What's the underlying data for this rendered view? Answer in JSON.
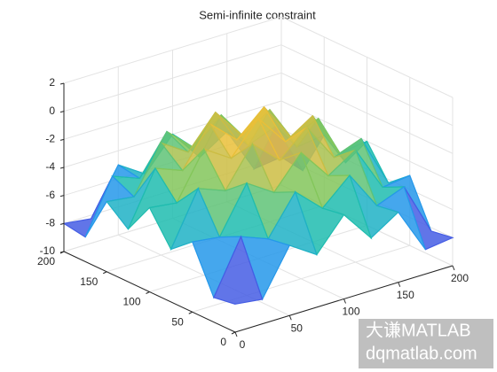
{
  "chart_data": {
    "type": "mesh",
    "title": "Semi-infinite constraint",
    "x": [
      0,
      25,
      50,
      75,
      100,
      125,
      150,
      175,
      200
    ],
    "y": [
      0,
      25,
      50,
      75,
      100,
      125,
      150,
      175,
      200
    ],
    "z": [
      [
        -8,
        -8.25,
        -5,
        -6.25,
        -4,
        -6.25,
        -5,
        -8.25,
        -8
      ],
      [
        -8.25,
        -4.5,
        -5.25,
        -2.5,
        -4.25,
        -2.5,
        -5.25,
        -4.5,
        -8.25
      ],
      [
        -5,
        -5.25,
        -2,
        -3.25,
        -1,
        -3.25,
        -2,
        -5.25,
        -5
      ],
      [
        -6.25,
        -2.5,
        -3.25,
        -0.5,
        -2.25,
        -0.5,
        -3.25,
        -2.5,
        -6.25
      ],
      [
        -4,
        -4.25,
        -1,
        -2.25,
        0,
        -2.25,
        -1,
        -4.25,
        -4
      ],
      [
        -6.25,
        -2.5,
        -3.25,
        -0.5,
        -2.25,
        -0.5,
        -3.25,
        -2.5,
        -6.25
      ],
      [
        -5,
        -5.25,
        -2,
        -3.25,
        -1,
        -3.25,
        -2,
        -5.25,
        -5
      ],
      [
        -8.25,
        -4.5,
        -5.25,
        -2.5,
        -4.25,
        -2.5,
        -5.25,
        -4.5,
        -8.25
      ],
      [
        -8,
        -8.25,
        -5,
        -6.25,
        -4,
        -6.25,
        -5,
        -8.25,
        -8
      ]
    ],
    "xlim": [
      0,
      200
    ],
    "ylim": [
      0,
      200
    ],
    "zlim": [
      -10,
      2
    ],
    "xticks": [
      0,
      50,
      100,
      150,
      200
    ],
    "yticks": [
      0,
      50,
      100,
      150,
      200
    ],
    "zticks": [
      -10,
      -8,
      -6,
      -4,
      -2,
      0,
      2
    ],
    "grid": true,
    "colormap": [
      "#3e26a8",
      "#4772fa",
      "#1ea0e6",
      "#1fbfa9",
      "#83c65a",
      "#e8b93b",
      "#f9fb15"
    ]
  },
  "watermark": [
    "大谦MATLAB",
    "dqmatlab.com"
  ]
}
